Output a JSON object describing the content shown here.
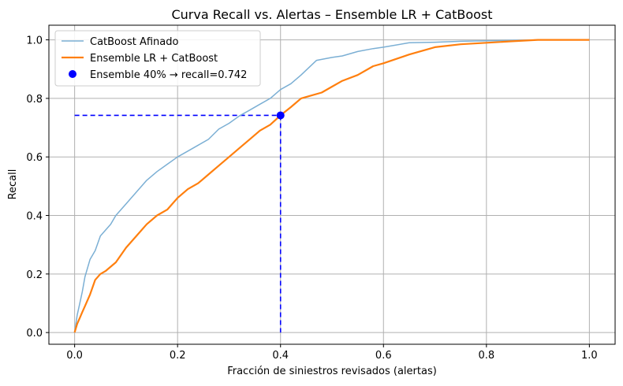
{
  "chart_data": {
    "type": "line",
    "title": "Curva Recall vs. Alertas – Ensemble LR + CatBoost",
    "xlabel": "Fracción de siniestros revisados (alertas)",
    "ylabel": "Recall",
    "xlim": [
      -0.05,
      1.05
    ],
    "ylim": [
      -0.04,
      1.05
    ],
    "xticks": [
      0.0,
      0.2,
      0.4,
      0.6,
      0.8,
      1.0
    ],
    "xtick_labels": [
      "0.0",
      "0.2",
      "0.4",
      "0.6",
      "0.8",
      "1.0"
    ],
    "yticks": [
      0.0,
      0.2,
      0.4,
      0.6,
      0.8,
      1.0
    ],
    "ytick_labels": [
      "0.0",
      "0.2",
      "0.4",
      "0.6",
      "0.8",
      "1.0"
    ],
    "grid": true,
    "legend_position": "top-left",
    "series": [
      {
        "name": "CatBoost Afinado",
        "color": "#7bafd4",
        "width": 1.5,
        "x": [
          0.0,
          0.005,
          0.01,
          0.015,
          0.02,
          0.03,
          0.04,
          0.05,
          0.06,
          0.07,
          0.08,
          0.09,
          0.1,
          0.12,
          0.14,
          0.16,
          0.18,
          0.2,
          0.22,
          0.24,
          0.26,
          0.28,
          0.3,
          0.32,
          0.34,
          0.36,
          0.38,
          0.4,
          0.42,
          0.44,
          0.47,
          0.5,
          0.52,
          0.55,
          0.58,
          0.6,
          0.65,
          0.7,
          0.75,
          0.8,
          0.85,
          0.9,
          1.0
        ],
        "y": [
          0.0,
          0.06,
          0.1,
          0.14,
          0.19,
          0.25,
          0.28,
          0.33,
          0.35,
          0.37,
          0.4,
          0.42,
          0.44,
          0.48,
          0.52,
          0.55,
          0.575,
          0.6,
          0.62,
          0.64,
          0.66,
          0.695,
          0.715,
          0.74,
          0.76,
          0.78,
          0.8,
          0.83,
          0.85,
          0.88,
          0.93,
          0.94,
          0.945,
          0.96,
          0.97,
          0.975,
          0.99,
          0.992,
          0.995,
          0.997,
          0.998,
          1.0,
          1.0
        ]
      },
      {
        "name": "Ensemble LR + CatBoost",
        "color": "#ff7f0e",
        "width": 2.2,
        "x": [
          0.0,
          0.005,
          0.01,
          0.015,
          0.02,
          0.03,
          0.04,
          0.05,
          0.06,
          0.08,
          0.1,
          0.12,
          0.14,
          0.16,
          0.18,
          0.2,
          0.22,
          0.24,
          0.26,
          0.28,
          0.3,
          0.32,
          0.34,
          0.36,
          0.38,
          0.4,
          0.42,
          0.44,
          0.46,
          0.48,
          0.5,
          0.52,
          0.55,
          0.58,
          0.6,
          0.65,
          0.7,
          0.75,
          0.8,
          0.85,
          0.9,
          1.0
        ],
        "y": [
          0.0,
          0.03,
          0.05,
          0.07,
          0.09,
          0.13,
          0.18,
          0.2,
          0.21,
          0.24,
          0.29,
          0.33,
          0.37,
          0.4,
          0.42,
          0.46,
          0.49,
          0.51,
          0.54,
          0.57,
          0.6,
          0.63,
          0.66,
          0.69,
          0.71,
          0.742,
          0.77,
          0.8,
          0.81,
          0.82,
          0.84,
          0.86,
          0.88,
          0.91,
          0.92,
          0.95,
          0.975,
          0.985,
          0.99,
          0.995,
          1.0,
          1.0
        ]
      }
    ],
    "highlight": {
      "label": "Ensemble 40% → recall=0.742",
      "x": 0.4,
      "y": 0.742,
      "color": "#0000ff"
    }
  }
}
